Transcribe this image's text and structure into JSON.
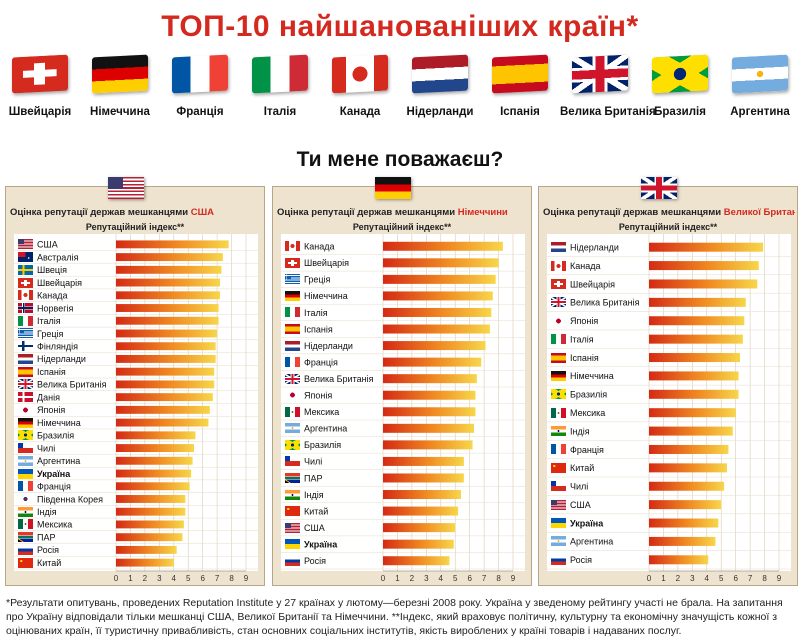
{
  "title": "ТОП-10 найшанованіших країн*",
  "subtitle": "Ти мене поважаєш?",
  "top10": [
    {
      "name": "Швейцарія",
      "flag": "ch"
    },
    {
      "name": "Німеччина",
      "flag": "de"
    },
    {
      "name": "Франція",
      "flag": "fr"
    },
    {
      "name": "Італія",
      "flag": "it"
    },
    {
      "name": "Канада",
      "flag": "ca"
    },
    {
      "name": "Нідерланди",
      "flag": "nl"
    },
    {
      "name": "Іспанія",
      "flag": "es"
    },
    {
      "name": "Велика Британія",
      "flag": "gb"
    },
    {
      "name": "Бразилія",
      "flag": "br"
    },
    {
      "name": "Аргентина",
      "flag": "ar"
    }
  ],
  "footnote": "*Результати опитувань, проведених Reputation Institute у 27 країнах у лютому—березні 2008 року. Україна у зведеному рейтингу участі не брала. На запитання про Україну відповідали тільки мешканці США, Великої Британії та Німеччини. **Індекс, який враховує політичну, культурну та економічну значущість кожної з оцінюваних країн, її туристичну привабливість, стан основних соціальних інститутів, якість вироблених у країні товарів і надаваних послуг.",
  "colors": {
    "title": "#d4291f",
    "panel_bg": "#eee3cf",
    "bar_start": "#d42a14",
    "bar_end": "#f7d64a",
    "highlight": "#d4291f"
  },
  "chart_data": [
    {
      "type": "bar",
      "orientation": "horizontal",
      "title_prefix": "Оцінка репутації держав мешканцями ",
      "title_highlight": "США",
      "flag": "us",
      "ylabel": "Репутаційний індекс**",
      "xlim": [
        0,
        9
      ],
      "ticks": [
        "0",
        "1",
        "2",
        "3",
        "4",
        "5",
        "6",
        "7",
        "8",
        "9"
      ],
      "categories": [
        "США",
        "Австралія",
        "Швеція",
        "Швейцарія",
        "Канада",
        "Норвегія",
        "Італія",
        "Греція",
        "Фінляндія",
        "Нідерланди",
        "Іспанія",
        "Велика Британія",
        "Данія",
        "Японія",
        "Німеччина",
        "Бразилія",
        "Чилі",
        "Аргентина",
        "Україна",
        "Франція",
        "Південна Корея",
        "Індія",
        "Мексика",
        "ПАР",
        "Росія",
        "Китай"
      ],
      "flags": [
        "us",
        "au",
        "se",
        "ch",
        "ca",
        "no",
        "it",
        "gr",
        "fi",
        "nl",
        "es",
        "gb",
        "dk",
        "jp",
        "de",
        "br",
        "cl",
        "ar",
        "ua",
        "fr",
        "kr",
        "in",
        "mx",
        "za",
        "ru",
        "cn"
      ],
      "values": [
        7.8,
        7.4,
        7.3,
        7.2,
        7.2,
        7.1,
        7.1,
        7.0,
        6.9,
        6.9,
        6.8,
        6.8,
        6.7,
        6.5,
        6.4,
        5.5,
        5.4,
        5.3,
        5.2,
        5.1,
        4.8,
        4.8,
        4.7,
        4.6,
        4.2,
        4.0
      ],
      "bold_category": "Україна"
    },
    {
      "type": "bar",
      "orientation": "horizontal",
      "title_prefix": "Оцінка репутації держав мешканцями ",
      "title_highlight": "Німеччини",
      "flag": "de",
      "ylabel": "Репутаційний індекс**",
      "xlim": [
        0,
        9
      ],
      "ticks": [
        "0",
        "1",
        "2",
        "3",
        "4",
        "5",
        "6",
        "7",
        "8",
        "9"
      ],
      "categories": [
        "Канада",
        "Швейцарія",
        "Греція",
        "Німеччина",
        "Італія",
        "Іспанія",
        "Нідерланди",
        "Франція",
        "Велика Британія",
        "Японія",
        "Мексика",
        "Аргентина",
        "Бразилія",
        "Чилі",
        "ПАР",
        "Індія",
        "Китай",
        "США",
        "Україна",
        "Росія"
      ],
      "flags": [
        "ca",
        "ch",
        "gr",
        "de",
        "it",
        "es",
        "nl",
        "fr",
        "gb",
        "jp",
        "mx",
        "ar",
        "br",
        "cl",
        "za",
        "in",
        "cn",
        "us",
        "ua",
        "ru"
      ],
      "values": [
        8.3,
        8.0,
        7.8,
        7.6,
        7.5,
        7.4,
        7.1,
        6.8,
        6.5,
        6.4,
        6.4,
        6.3,
        6.2,
        5.6,
        5.6,
        5.4,
        5.2,
        5.0,
        4.9,
        4.6
      ],
      "bold_category": "Україна"
    },
    {
      "type": "bar",
      "orientation": "horizontal",
      "title_prefix": "Оцінка репутації держав мешканцями ",
      "title_highlight": "Великої Британії",
      "flag": "gb",
      "ylabel": "Репутаційний індекс**",
      "xlim": [
        0,
        9
      ],
      "ticks": [
        "0",
        "1",
        "2",
        "3",
        "4",
        "5",
        "6",
        "7",
        "8",
        "9"
      ],
      "categories": [
        "Нідерланди",
        "Канада",
        "Швейцарія",
        "Велика Британія",
        "Японія",
        "Італія",
        "Іспанія",
        "Німеччина",
        "Бразилія",
        "Мексика",
        "Індія",
        "Франція",
        "Китай",
        "Чилі",
        "США",
        "Україна",
        "Аргентина",
        "Росія"
      ],
      "flags": [
        "nl",
        "ca",
        "ch",
        "gb",
        "jp",
        "it",
        "es",
        "de",
        "br",
        "mx",
        "in",
        "fr",
        "cn",
        "cl",
        "us",
        "ua",
        "ar",
        "ru"
      ],
      "values": [
        7.9,
        7.6,
        7.5,
        6.7,
        6.6,
        6.5,
        6.3,
        6.2,
        6.2,
        6.0,
        5.8,
        5.5,
        5.4,
        5.2,
        5.0,
        4.8,
        4.6,
        4.1
      ],
      "bold_category": "Україна"
    }
  ]
}
